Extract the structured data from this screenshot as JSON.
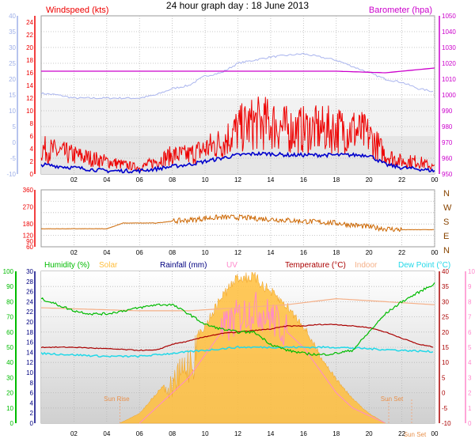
{
  "title": "24 hour graph day : 18 June 2013",
  "colors": {
    "wind_axis": "#9fb0e8",
    "gust": "#ee0000",
    "avg_wind": "#0000cc",
    "baro": "#cc00cc",
    "baro_axis": "#cc00cc",
    "baro_history": "#a9b4ee",
    "dir": "#cc6600",
    "humidity": "#00bb00",
    "solar": "#ffbe3c",
    "rain": "#000080",
    "uv": "#ff88cc",
    "temp": "#aa0000",
    "indoor": "#f5b088",
    "dew": "#22d8e8"
  },
  "chart_data": [
    {
      "type": "line",
      "title": "24 hour graph day : 18 June 2013",
      "left_label": "Windspeed (kts)",
      "right_label": "Barometer (hpa)",
      "x_ticks": [
        "02",
        "04",
        "06",
        "08",
        "10",
        "12",
        "14",
        "16",
        "18",
        "20",
        "22",
        "00"
      ],
      "y_left_outer": [
        "-10",
        "-5",
        "0",
        "5",
        "10",
        "15",
        "20",
        "25",
        "30",
        "35",
        "40"
      ],
      "y_left_inner": [
        "0",
        "2",
        "4",
        "6",
        "8",
        "10",
        "12",
        "14",
        "16",
        "18",
        "20",
        "22",
        "24"
      ],
      "y_right": [
        "950",
        "960",
        "970",
        "980",
        "990",
        "1000",
        "1010",
        "1020",
        "1030",
        "1040",
        "1050"
      ],
      "ylim_outer": [
        -10,
        40
      ],
      "ylim_inner": [
        0,
        25
      ],
      "ylim_right": [
        950,
        1050
      ],
      "series": [
        {
          "name": "Gust",
          "x": [
            0,
            2,
            4,
            6,
            7,
            8,
            9,
            10,
            11,
            12,
            13,
            14,
            15,
            16,
            17,
            18,
            19,
            20,
            21,
            22,
            23,
            24
          ],
          "values": [
            4,
            3,
            2,
            1,
            2,
            3,
            3,
            4,
            5,
            7,
            8,
            8,
            7,
            7,
            7,
            7,
            7,
            6,
            3,
            2,
            2,
            1
          ]
        },
        {
          "name": "Average",
          "x": [
            0,
            2,
            4,
            6,
            7,
            8,
            9,
            10,
            11,
            12,
            13,
            14,
            15,
            16,
            17,
            18,
            19,
            20,
            21,
            22,
            23,
            24
          ],
          "values": [
            1.5,
            1,
            0.5,
            0.5,
            0.8,
            1.2,
            1.5,
            2,
            2.5,
            3,
            3.2,
            3.2,
            3,
            3,
            3,
            3,
            3,
            3,
            1.5,
            1,
            0.8,
            0.5
          ]
        },
        {
          "name": "Barometer",
          "x": [
            0,
            3,
            6,
            9,
            12,
            15,
            18,
            21,
            24
          ],
          "values": [
            1015,
            1015,
            1015,
            1015,
            1015,
            1015,
            1015,
            1014,
            1017
          ]
        },
        {
          "name": "Barometer history",
          "x": [
            0,
            1,
            2,
            3,
            4,
            5,
            6,
            7,
            8,
            9,
            10,
            11,
            12,
            13,
            14,
            15,
            16,
            17,
            18,
            19,
            20,
            21,
            22,
            23,
            24
          ],
          "values": [
            15.5,
            15,
            14,
            14,
            14,
            14,
            14,
            15,
            17,
            18,
            21,
            22,
            25,
            26,
            27,
            27.5,
            28,
            27,
            26,
            24,
            22,
            20,
            19,
            17,
            16
          ]
        }
      ]
    },
    {
      "type": "line",
      "y_ticks": [
        "60",
        "90",
        "120",
        "180",
        "270",
        "360"
      ],
      "ylim": [
        60,
        360
      ],
      "compass": [
        "N",
        "W",
        "S",
        "E",
        "N"
      ],
      "series": [
        {
          "name": "Wind direction",
          "x": [
            0,
            2,
            4,
            5,
            6,
            7,
            8,
            9,
            10,
            11,
            12,
            13,
            14,
            15,
            16,
            17,
            18,
            19,
            20,
            21,
            22,
            23,
            24
          ],
          "values": [
            155,
            155,
            155,
            185,
            185,
            185,
            195,
            200,
            210,
            215,
            215,
            210,
            205,
            200,
            195,
            190,
            185,
            175,
            165,
            155,
            150,
            150,
            150
          ]
        }
      ]
    },
    {
      "type": "line",
      "labels": [
        "Humidity (%)",
        "Solar",
        "Rainfall (mm)",
        "UV",
        "Temperature (°C)",
        "Indoor",
        "Dew Point (°C)"
      ],
      "outer_left": [
        "0",
        "10",
        "20",
        "30",
        "40",
        "50",
        "60",
        "70",
        "80",
        "90",
        "100"
      ],
      "inner_left": [
        "0",
        "2",
        "4",
        "6",
        "8",
        "10",
        "12",
        "14",
        "16",
        "18",
        "20",
        "22",
        "24",
        "26",
        "28",
        "30"
      ],
      "right_c": [
        "-10",
        "-5",
        "0",
        "5",
        "10",
        "15",
        "20",
        "25",
        "30",
        "35",
        "40"
      ],
      "right_uv": [
        "0",
        "1",
        "2",
        "3",
        "4",
        "5",
        "6",
        "7",
        "8",
        "9",
        "10"
      ],
      "annotations": [
        "Sun Rise",
        "Sun Set",
        "Sun Set"
      ],
      "series": [
        {
          "name": "Humidity",
          "x": [
            0,
            1,
            2,
            3,
            4,
            5,
            6,
            7,
            8,
            9,
            10,
            11,
            12,
            13,
            14,
            15,
            16,
            17,
            18,
            19,
            20,
            21,
            22,
            23,
            24
          ],
          "values": [
            82,
            78,
            74,
            72,
            72,
            74,
            76,
            78,
            78,
            72,
            65,
            62,
            60,
            60,
            52,
            48,
            46,
            45,
            46,
            48,
            60,
            72,
            80,
            86,
            92
          ]
        },
        {
          "name": "Temperature",
          "x": [
            0,
            2,
            4,
            6,
            7,
            8,
            9,
            10,
            11,
            12,
            13,
            14,
            15,
            16,
            17,
            18,
            19,
            20,
            21,
            22,
            23,
            24
          ],
          "values": [
            15,
            15,
            14.5,
            14,
            14,
            16,
            17,
            18.5,
            19.5,
            20,
            20.5,
            21,
            22,
            22,
            22.5,
            22.5,
            22,
            21.5,
            20,
            18,
            16,
            15
          ]
        },
        {
          "name": "Indoor",
          "x": [
            0,
            3,
            6,
            9,
            12,
            15,
            18,
            21,
            24
          ],
          "values": [
            28,
            27.5,
            27,
            27,
            28,
            29,
            31,
            30,
            29
          ]
        },
        {
          "name": "Dew Point",
          "x": [
            0,
            2,
            4,
            6,
            8,
            10,
            12,
            14,
            16,
            18,
            20,
            22,
            24
          ],
          "values": [
            13,
            12.5,
            12,
            12,
            13,
            14,
            15,
            15,
            15,
            15,
            14.5,
            14,
            13.5
          ]
        },
        {
          "name": "Solar",
          "x": [
            4.8,
            6,
            7,
            8,
            9,
            10,
            11,
            12,
            13,
            14,
            15,
            16,
            17,
            18,
            19,
            20,
            21
          ],
          "values": [
            0,
            2,
            6,
            10,
            16,
            20,
            26,
            30,
            30,
            27,
            24,
            20,
            14,
            9,
            5,
            2,
            0
          ]
        },
        {
          "name": "UV",
          "x": [
            6,
            7,
            8,
            9,
            10,
            11,
            12,
            13,
            14,
            15,
            16,
            17,
            18,
            19,
            20,
            21
          ],
          "values": [
            0,
            1,
            2,
            3,
            4.5,
            6,
            7,
            7.5,
            7,
            6,
            5,
            3.5,
            2,
            1,
            0.5,
            0
          ]
        }
      ]
    }
  ]
}
